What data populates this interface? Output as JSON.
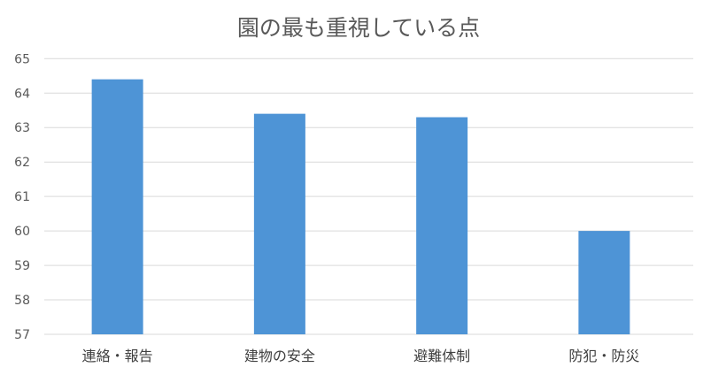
{
  "chart_data": {
    "type": "bar",
    "title": "園の最も重視している点",
    "categories": [
      "連絡・報告",
      "建物の安全",
      "避難体制",
      "防犯・防災"
    ],
    "values": [
      64.4,
      63.4,
      63.3,
      60.0
    ],
    "xlabel": "",
    "ylabel": "",
    "ylim": [
      57,
      65
    ],
    "yticks": [
      57,
      58,
      59,
      60,
      61,
      62,
      63,
      64,
      65
    ],
    "grid": true,
    "legend": "none",
    "bar_color": "#4e94d6"
  }
}
